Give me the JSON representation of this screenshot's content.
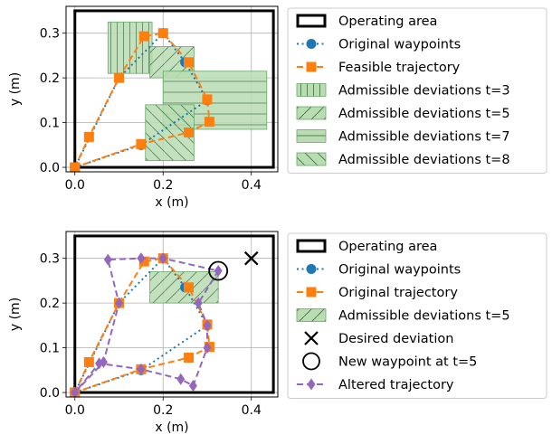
{
  "chart_data": [
    {
      "type": "line",
      "xlabel": "x (m)",
      "ylabel": "y (m)",
      "xlim": [
        -0.02,
        0.46
      ],
      "ylim": [
        -0.01,
        0.36
      ],
      "xticks": [
        "0.0",
        "0.2",
        "0.4"
      ],
      "yticks": [
        "0.0",
        "0.1",
        "0.2",
        "0.3"
      ],
      "grid": true,
      "legend_position": "right-outside",
      "operating_area": {
        "label": "Operating area",
        "x": [
          0,
          0.45
        ],
        "y": [
          0,
          0.35
        ]
      },
      "regions": [
        {
          "name": "Admissible deviations t=3",
          "x": [
            0.075,
            0.175
          ],
          "y": [
            0.21,
            0.325
          ],
          "hatch": "vertical"
        },
        {
          "name": "Admissible deviations t=5",
          "x": [
            0.17,
            0.27
          ],
          "y": [
            0.2,
            0.27
          ],
          "hatch": "forward"
        },
        {
          "name": "Admissible deviations t=7",
          "x": [
            0.2,
            0.435
          ],
          "y": [
            0.085,
            0.215
          ],
          "hatch": "horizontal"
        },
        {
          "name": "Admissible deviations t=8",
          "x": [
            0.16,
            0.27
          ],
          "y": [
            0.015,
            0.14
          ],
          "hatch": "back"
        }
      ],
      "series": [
        {
          "name": "Original waypoints",
          "style": "dotted",
          "marker": "circle",
          "color": "#1f77b4",
          "x": [
            0,
            0.15,
            0.3,
            0.25,
            0.2,
            0.1,
            0
          ],
          "y": [
            0,
            0.05,
            0.15,
            0.235,
            0.3,
            0.2,
            0
          ]
        },
        {
          "name": "Feasible trajectory",
          "style": "dashed",
          "marker": "square",
          "color": "#ff7f0e",
          "x": [
            0,
            0.032,
            0.1,
            0.157,
            0.2,
            0.258,
            0.3,
            0.305,
            0.258,
            0.15,
            0
          ],
          "y": [
            0,
            0.068,
            0.2,
            0.293,
            0.3,
            0.235,
            0.152,
            0.102,
            0.078,
            0.052,
            0
          ]
        }
      ]
    },
    {
      "type": "line",
      "xlabel": "x (m)",
      "ylabel": "y (m)",
      "xlim": [
        -0.02,
        0.46
      ],
      "ylim": [
        -0.01,
        0.36
      ],
      "xticks": [
        "0.0",
        "0.2",
        "0.4"
      ],
      "yticks": [
        "0.0",
        "0.1",
        "0.2",
        "0.3"
      ],
      "grid": true,
      "legend_position": "right-outside",
      "operating_area": {
        "label": "Operating area",
        "x": [
          0,
          0.45
        ],
        "y": [
          0,
          0.35
        ]
      },
      "regions": [
        {
          "name": "Admissible deviations t=5",
          "x": [
            0.17,
            0.325
          ],
          "y": [
            0.2,
            0.27
          ],
          "hatch": "forward"
        }
      ],
      "desired_deviation": {
        "name": "Desired deviation",
        "x": 0.4,
        "y": 0.3
      },
      "new_waypoint": {
        "name": "New waypoint at t=5",
        "x": 0.325,
        "y": 0.272
      },
      "series": [
        {
          "name": "Original waypoints",
          "style": "dotted",
          "marker": "circle",
          "color": "#1f77b4",
          "x": [
            0,
            0.15,
            0.3,
            0.25,
            0.2,
            0.1,
            0
          ],
          "y": [
            0,
            0.05,
            0.15,
            0.235,
            0.3,
            0.2,
            0
          ]
        },
        {
          "name": "Original trajectory",
          "style": "dashed",
          "marker": "square",
          "color": "#ff7f0e",
          "x": [
            0,
            0.032,
            0.1,
            0.157,
            0.2,
            0.258,
            0.3,
            0.305,
            0.258,
            0.15,
            0
          ],
          "y": [
            0,
            0.068,
            0.2,
            0.293,
            0.3,
            0.235,
            0.152,
            0.102,
            0.078,
            0.052,
            0
          ]
        },
        {
          "name": "Altered trajectory",
          "style": "dashed",
          "marker": "diamond",
          "color": "#9467bd",
          "x": [
            0,
            0.065,
            0.1,
            0.075,
            0.15,
            0.2,
            0.325,
            0.28,
            0.3,
            0.3,
            0.268,
            0.24,
            0.15,
            0.055,
            0
          ],
          "y": [
            0,
            0.068,
            0.2,
            0.297,
            0.3,
            0.3,
            0.272,
            0.2,
            0.15,
            0.1,
            0.015,
            0.03,
            0.052,
            0.065,
            0
          ]
        }
      ]
    }
  ]
}
